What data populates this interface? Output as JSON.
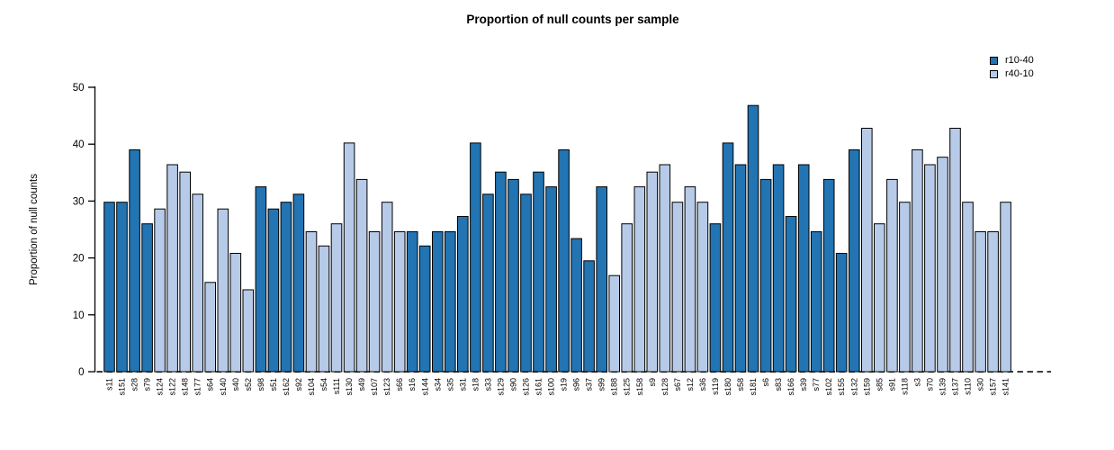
{
  "chart_data": {
    "type": "bar",
    "title": "Proportion of null counts per sample",
    "xlabel": "",
    "ylabel": "Proportion of null counts",
    "ylim": [
      0,
      50
    ],
    "yticks": [
      0,
      10,
      20,
      30,
      40,
      50
    ],
    "grid": false,
    "legend_position": "top-right",
    "baseline": {
      "y": 0,
      "style": "dashed",
      "color": "#3d3d3d"
    },
    "bar_border_color": "#000000",
    "series": [
      {
        "name": "r10-40",
        "color": "#2274b2"
      },
      {
        "name": "r40-10",
        "color": "#b7cbe9"
      }
    ],
    "categories": [
      "s11",
      "s151",
      "s28",
      "s79",
      "s124",
      "s122",
      "s148",
      "s177",
      "s64",
      "s140",
      "s40",
      "s52",
      "s98",
      "s51",
      "s162",
      "s92",
      "s104",
      "s54",
      "s111",
      "s130",
      "s49",
      "s107",
      "s123",
      "s66",
      "s16",
      "s144",
      "s34",
      "s35",
      "s31",
      "s18",
      "s33",
      "s129",
      "s90",
      "s126",
      "s161",
      "s100",
      "s19",
      "s96",
      "s37",
      "s99",
      "s188",
      "s125",
      "s158",
      "s9",
      "s128",
      "s67",
      "s12",
      "s36",
      "s119",
      "s180",
      "s58",
      "s181",
      "s6",
      "s83",
      "s166",
      "s39",
      "s77",
      "s102",
      "s155",
      "s132",
      "s159",
      "s85",
      "s91",
      "s118",
      "s3",
      "s70",
      "s139",
      "s137",
      "s110",
      "s30",
      "s157",
      "s141"
    ],
    "values": [
      29.8,
      29.8,
      39.0,
      26.0,
      28.6,
      36.4,
      35.1,
      31.2,
      15.7,
      28.6,
      20.8,
      14.4,
      32.5,
      28.6,
      29.8,
      31.2,
      24.6,
      22.1,
      26.0,
      40.2,
      33.8,
      24.6,
      29.8,
      24.6,
      24.6,
      22.1,
      24.6,
      24.6,
      27.3,
      40.2,
      31.2,
      35.1,
      33.8,
      31.2,
      35.1,
      32.5,
      39.0,
      23.4,
      19.5,
      32.5,
      16.9,
      26.0,
      32.5,
      35.1,
      36.4,
      29.8,
      32.5,
      29.8,
      26.0,
      40.2,
      36.4,
      46.8,
      33.8,
      36.4,
      27.3,
      36.4,
      24.6,
      33.8,
      20.8,
      39.0,
      42.8,
      26.0,
      33.8,
      29.8,
      39.0,
      36.4,
      37.7,
      42.8,
      29.8,
      24.6,
      24.6,
      29.8
    ],
    "groups": [
      "r10-40",
      "r10-40",
      "r10-40",
      "r10-40",
      "r40-10",
      "r40-10",
      "r40-10",
      "r40-10",
      "r40-10",
      "r40-10",
      "r40-10",
      "r40-10",
      "r10-40",
      "r10-40",
      "r10-40",
      "r10-40",
      "r40-10",
      "r40-10",
      "r40-10",
      "r40-10",
      "r40-10",
      "r40-10",
      "r40-10",
      "r40-10",
      "r10-40",
      "r10-40",
      "r10-40",
      "r10-40",
      "r10-40",
      "r10-40",
      "r10-40",
      "r10-40",
      "r10-40",
      "r10-40",
      "r10-40",
      "r10-40",
      "r10-40",
      "r10-40",
      "r10-40",
      "r10-40",
      "r40-10",
      "r40-10",
      "r40-10",
      "r40-10",
      "r40-10",
      "r40-10",
      "r40-10",
      "r40-10",
      "r10-40",
      "r10-40",
      "r10-40",
      "r10-40",
      "r10-40",
      "r10-40",
      "r10-40",
      "r10-40",
      "r10-40",
      "r10-40",
      "r10-40",
      "r10-40",
      "r40-10",
      "r40-10",
      "r40-10",
      "r40-10",
      "r40-10",
      "r40-10",
      "r40-10",
      "r40-10",
      "r40-10",
      "r40-10",
      "r40-10",
      "r40-10"
    ]
  }
}
